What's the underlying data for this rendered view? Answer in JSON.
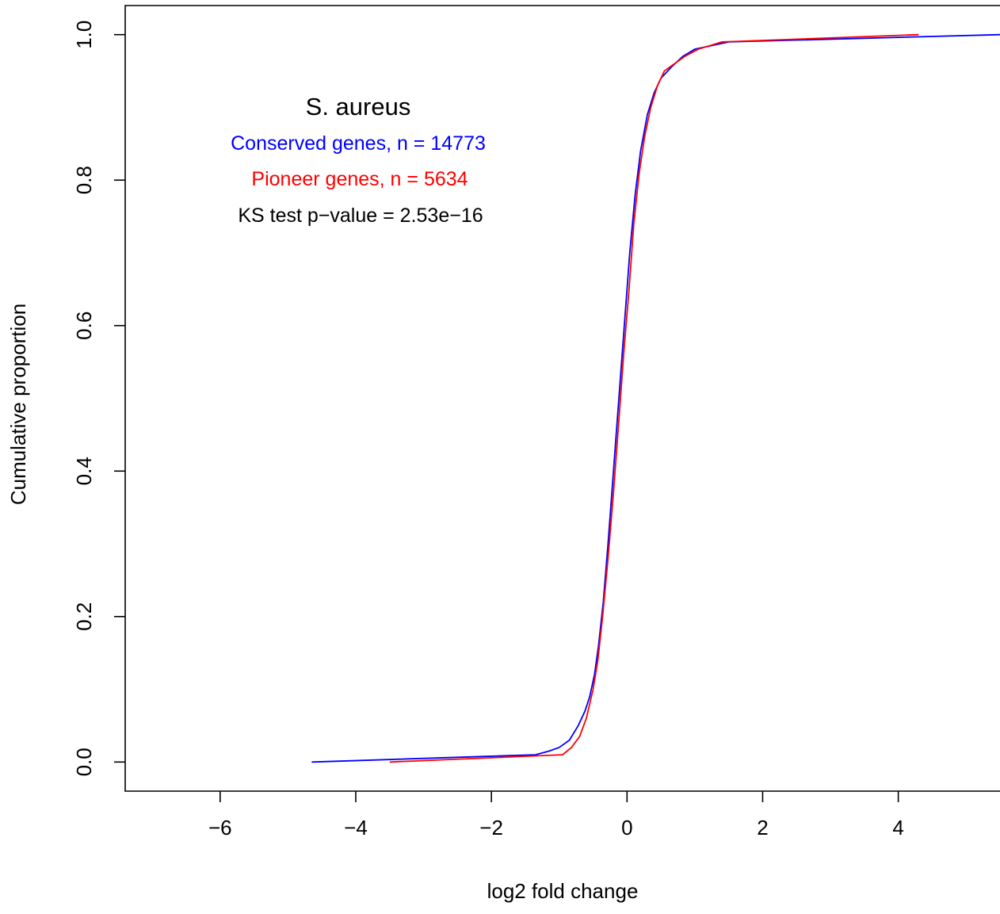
{
  "chart_data": {
    "type": "line",
    "title": "",
    "xlabel": "log2 fold change",
    "ylabel": "Cumulative proportion",
    "xlim": [
      -7.4,
      5.5
    ],
    "ylim": [
      -0.04,
      1.04
    ],
    "x_ticks": [
      -6,
      -4,
      -2,
      0,
      2,
      4
    ],
    "x_tick_labels": [
      "−6",
      "−4",
      "−2",
      "0",
      "2",
      "4"
    ],
    "y_ticks": [
      0.0,
      0.2,
      0.4,
      0.6,
      0.8,
      1.0
    ],
    "y_tick_labels": [
      "0.0",
      "0.2",
      "0.4",
      "0.6",
      "0.8",
      "1.0"
    ],
    "grid": false,
    "annotations": [
      {
        "text": "S. aureus",
        "color": "#000000"
      },
      {
        "text": "Conserved genes, n = 14773",
        "color": "#0000ff"
      },
      {
        "text": "Pioneer genes, n = 5634",
        "color": "#ff0000"
      },
      {
        "text": "KS test p−value = 2.53e−16",
        "color": "#000000"
      }
    ],
    "series": [
      {
        "color": "#0000ff",
        "points": [
          [
            -4.65,
            0.0
          ],
          [
            -1.35,
            0.01
          ],
          [
            -1.15,
            0.015
          ],
          [
            -1.0,
            0.02
          ],
          [
            -0.85,
            0.03
          ],
          [
            -0.72,
            0.05
          ],
          [
            -0.62,
            0.07
          ],
          [
            -0.55,
            0.09
          ],
          [
            -0.48,
            0.12
          ],
          [
            -0.42,
            0.16
          ],
          [
            -0.35,
            0.22
          ],
          [
            -0.28,
            0.3
          ],
          [
            -0.2,
            0.4
          ],
          [
            -0.12,
            0.5
          ],
          [
            -0.04,
            0.6
          ],
          [
            0.04,
            0.7
          ],
          [
            0.12,
            0.78
          ],
          [
            0.2,
            0.84
          ],
          [
            0.3,
            0.89
          ],
          [
            0.4,
            0.92
          ],
          [
            0.5,
            0.94
          ],
          [
            0.65,
            0.955
          ],
          [
            0.82,
            0.97
          ],
          [
            1.0,
            0.98
          ],
          [
            1.5,
            0.99
          ],
          [
            5.5,
            1.0
          ]
        ]
      },
      {
        "color": "#ff0000",
        "points": [
          [
            -3.5,
            0.0
          ],
          [
            -0.95,
            0.01
          ],
          [
            -0.82,
            0.02
          ],
          [
            -0.7,
            0.035
          ],
          [
            -0.6,
            0.06
          ],
          [
            -0.5,
            0.1
          ],
          [
            -0.43,
            0.14
          ],
          [
            -0.36,
            0.2
          ],
          [
            -0.28,
            0.28
          ],
          [
            -0.2,
            0.37
          ],
          [
            -0.12,
            0.47
          ],
          [
            -0.05,
            0.56
          ],
          [
            0.03,
            0.65
          ],
          [
            0.1,
            0.74
          ],
          [
            0.18,
            0.81
          ],
          [
            0.26,
            0.86
          ],
          [
            0.35,
            0.9
          ],
          [
            0.45,
            0.93
          ],
          [
            0.55,
            0.95
          ],
          [
            0.7,
            0.96
          ],
          [
            0.85,
            0.97
          ],
          [
            1.05,
            0.98
          ],
          [
            1.4,
            0.99
          ],
          [
            4.3,
            1.0
          ]
        ]
      }
    ]
  }
}
